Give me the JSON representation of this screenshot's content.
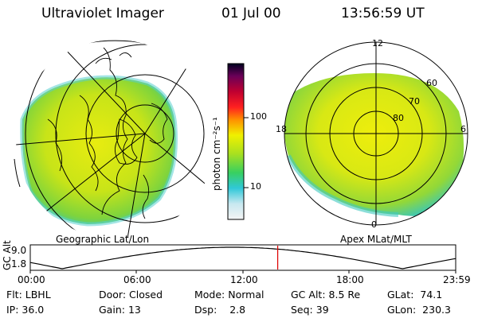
{
  "header": {
    "title": "Ultraviolet Imager",
    "date": "01 Jul 00",
    "time": "13:56:59 UT"
  },
  "left_map": {
    "caption": "Geographic Lat/Lon"
  },
  "right_map": {
    "caption": "Apex MLat/MLT",
    "mlt_labels": {
      "top": "12",
      "bottom": "0",
      "left": "18",
      "right": "6"
    },
    "lat_labels": [
      "60",
      "70",
      "80"
    ]
  },
  "colorbar": {
    "unit_label": "photon cm⁻²s⁻¹",
    "tick_labels": [
      "100",
      "10"
    ],
    "scale": "log"
  },
  "altitude_plot": {
    "ylabel": "GC Alt",
    "y_ticks": [
      "9.0",
      "1.8"
    ],
    "x_ticks": [
      "00:00",
      "06:00",
      "12:00",
      "18:00",
      "23:59"
    ],
    "current_time_marker": "13:56:59",
    "marker_color": "#dd0000"
  },
  "info": {
    "row1": [
      {
        "label": "Flt:",
        "value": "LBHL"
      },
      {
        "label": "Door:",
        "value": "Closed"
      },
      {
        "label": "Mode:",
        "value": "Normal"
      },
      {
        "label": "GC Alt:",
        "value": "8.5 Re"
      },
      {
        "label": "GLat:",
        "value": "74.1"
      }
    ],
    "row2": [
      {
        "label": "IP:",
        "value": "36.0"
      },
      {
        "label": "Gain:",
        "value": "13"
      },
      {
        "label": "Dsp:",
        "value": "2.8"
      },
      {
        "label": "Seq:",
        "value": "39"
      },
      {
        "label": "GLon:",
        "value": "230.3"
      }
    ]
  }
}
